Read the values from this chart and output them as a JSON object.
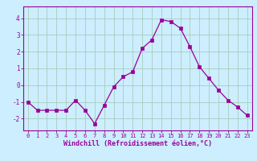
{
  "x": [
    0,
    1,
    2,
    3,
    4,
    5,
    6,
    7,
    8,
    9,
    10,
    11,
    12,
    13,
    14,
    15,
    16,
    17,
    18,
    19,
    20,
    21,
    22,
    23
  ],
  "y": [
    -1.0,
    -1.5,
    -1.5,
    -1.5,
    -1.5,
    -0.9,
    -1.5,
    -2.3,
    -1.2,
    -0.1,
    0.5,
    0.8,
    2.2,
    2.7,
    3.9,
    3.8,
    3.4,
    2.3,
    1.1,
    0.4,
    -0.3,
    -0.9,
    -1.3,
    -1.8
  ],
  "line_color": "#990099",
  "marker": "s",
  "marker_size": 2.5,
  "bg_color": "#cceeff",
  "grid_color": "#aaccbb",
  "xlabel": "Windchill (Refroidissement éolien,°C)",
  "xlabel_color": "#990099",
  "tick_color": "#990099",
  "axes_color": "#990099",
  "ylim": [
    -2.7,
    4.7
  ],
  "xlim": [
    -0.5,
    23.5
  ],
  "yticks": [
    -2,
    -1,
    0,
    1,
    2,
    3,
    4
  ],
  "xticks": [
    0,
    1,
    2,
    3,
    4,
    5,
    6,
    7,
    8,
    9,
    10,
    11,
    12,
    13,
    14,
    15,
    16,
    17,
    18,
    19,
    20,
    21,
    22,
    23
  ]
}
